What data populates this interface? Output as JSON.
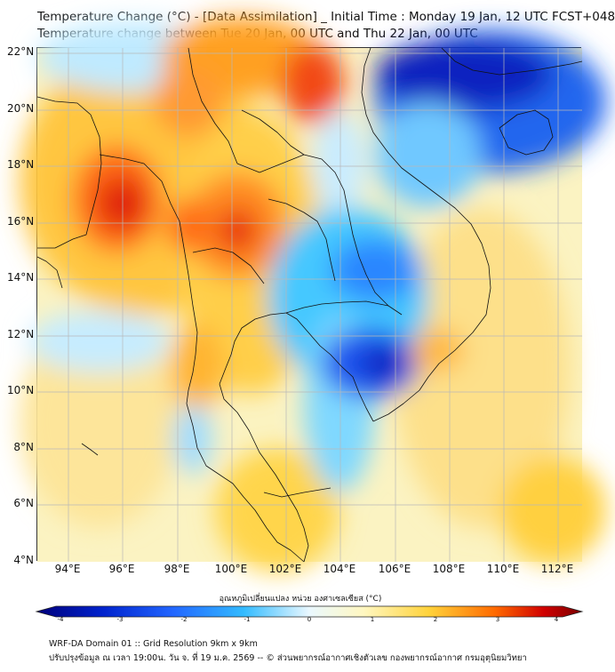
{
  "title_line1": "Temperature Change (°C) - [Data Assimilation] _ Initial Time : Monday 19 Jan, 12 UTC FCST+048",
  "title_line2": "Temperature change between Tue 20 Jan, 00 UTC and Thu 22 Jan, 00 UTC",
  "lat_labels": [
    "22°N",
    "20°N",
    "18°N",
    "16°N",
    "14°N",
    "12°N",
    "10°N",
    "8°N",
    "6°N",
    "4°N"
  ],
  "lon_labels": [
    "94°E",
    "96°E",
    "98°E",
    "100°E",
    "102°E",
    "104°E",
    "106°E",
    "108°E",
    "110°E",
    "112°E"
  ],
  "colorbar": {
    "title": "อุณหภูมิเปลี่ยนแปลง หน่วย องศาเซลเซียส (°C)",
    "ticks": [
      "-4",
      "-3",
      "-2",
      "-1",
      "0",
      "1",
      "2",
      "3",
      "4"
    ],
    "colors": [
      "#00007a",
      "#0022cc",
      "#2266ff",
      "#33bbff",
      "#eaf8ff",
      "#fff7c0",
      "#ffd23a",
      "#ff6a00",
      "#d00000",
      "#7a0000"
    ]
  },
  "footer_line1": "WRF-DA Domain 01 :: Grid Resolution 9km x 9km",
  "footer_line2": "ปรับปรุงข้อมูล ณ เวลา 19:00น. วัน จ. ที่ 19 ม.ค. 2569 -- © ส่วนพยากรณ์อากาศเชิงตัวเลข กองพยากรณ์อากาศ กรมอุตุนิยมวิทยา"
}
